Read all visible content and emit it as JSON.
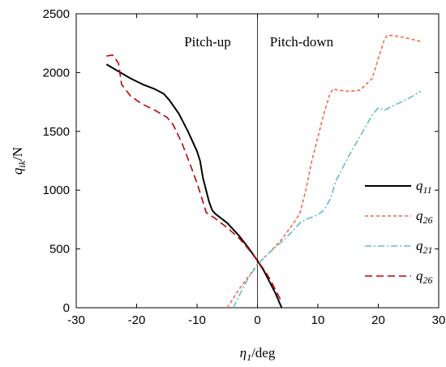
{
  "chart_data": {
    "type": "line",
    "xlabel": {
      "main": "η",
      "sub": "1",
      "unit": "/deg"
    },
    "ylabel": {
      "main": "q",
      "sub": "ik",
      "unit": "/N"
    },
    "xlim": [
      -30,
      30
    ],
    "ylim": [
      0,
      2500
    ],
    "xticks": [
      -30,
      -20,
      -10,
      0,
      10,
      20,
      30
    ],
    "yticks": [
      0,
      500,
      1000,
      1500,
      2000,
      2500
    ],
    "grid": false,
    "vertical_reference_line_x": 0,
    "regions": {
      "left": "Pitch-up",
      "right": "Pitch-down"
    },
    "legend_position": "right",
    "series": [
      {
        "name": "q11",
        "name_main": "q",
        "name_sub": "11",
        "color": "#000000",
        "dash": "none",
        "width": 2,
        "points": [
          [
            -25,
            2070
          ],
          [
            -23,
            2010
          ],
          [
            -21,
            1950
          ],
          [
            -19,
            1900
          ],
          [
            -17,
            1860
          ],
          [
            -15.5,
            1820
          ],
          [
            -14.5,
            1760
          ],
          [
            -13,
            1650
          ],
          [
            -11.5,
            1500
          ],
          [
            -10,
            1330
          ],
          [
            -9.5,
            1250
          ],
          [
            -9,
            1100
          ],
          [
            -8,
            900
          ],
          [
            -7.5,
            830
          ],
          [
            -7,
            800
          ],
          [
            -5,
            720
          ],
          [
            -3,
            610
          ],
          [
            -1.5,
            510
          ],
          [
            0,
            400
          ],
          [
            1,
            320
          ],
          [
            2,
            220
          ],
          [
            3,
            120
          ],
          [
            4,
            0
          ]
        ]
      },
      {
        "name": "q26",
        "name_main": "q",
        "name_sub": "26",
        "color": "#ff6347",
        "dash": "4,3",
        "width": 1.6,
        "points": [
          [
            -5,
            0
          ],
          [
            -3,
            160
          ],
          [
            -1,
            300
          ],
          [
            0,
            370
          ],
          [
            2,
            470
          ],
          [
            4,
            580
          ],
          [
            6,
            720
          ],
          [
            7,
            800
          ],
          [
            8,
            1000
          ],
          [
            9,
            1250
          ],
          [
            10,
            1450
          ],
          [
            11,
            1650
          ],
          [
            12,
            1820
          ],
          [
            12.5,
            1860
          ],
          [
            13.5,
            1850
          ],
          [
            15,
            1840
          ],
          [
            17,
            1850
          ],
          [
            19,
            1950
          ],
          [
            20,
            2120
          ],
          [
            21,
            2280
          ],
          [
            21.5,
            2320
          ],
          [
            23,
            2310
          ],
          [
            25,
            2290
          ],
          [
            27,
            2265
          ]
        ]
      },
      {
        "name": "q21",
        "name_main": "q",
        "name_sub": "21",
        "color": "#5fc0c8",
        "dash": "8,3,2,3",
        "width": 1.6,
        "points": [
          [
            -4,
            0
          ],
          [
            -2,
            210
          ],
          [
            0,
            370
          ],
          [
            2,
            470
          ],
          [
            4,
            560
          ],
          [
            6,
            660
          ],
          [
            7,
            720
          ],
          [
            8,
            750
          ],
          [
            9,
            770
          ],
          [
            10,
            790
          ],
          [
            11,
            830
          ],
          [
            12,
            920
          ],
          [
            13,
            1080
          ],
          [
            15,
            1280
          ],
          [
            17,
            1460
          ],
          [
            19,
            1640
          ],
          [
            20,
            1700
          ],
          [
            21,
            1680
          ],
          [
            23,
            1730
          ],
          [
            25,
            1780
          ],
          [
            27,
            1840
          ]
        ]
      },
      {
        "name": "q26",
        "name_main": "q",
        "name_sub": "26",
        "color": "#c00000",
        "dash": "9,5",
        "width": 1.6,
        "points": [
          [
            -25,
            2140
          ],
          [
            -24,
            2150
          ],
          [
            -23,
            2080
          ],
          [
            -22.5,
            1900
          ],
          [
            -21,
            1800
          ],
          [
            -19,
            1730
          ],
          [
            -17,
            1680
          ],
          [
            -15,
            1620
          ],
          [
            -14,
            1560
          ],
          [
            -12.5,
            1400
          ],
          [
            -11,
            1200
          ],
          [
            -10,
            1060
          ],
          [
            -9,
            900
          ],
          [
            -8.5,
            810
          ],
          [
            -7,
            760
          ],
          [
            -5,
            680
          ],
          [
            -3,
            590
          ],
          [
            -1.5,
            500
          ],
          [
            0,
            400
          ],
          [
            1,
            330
          ],
          [
            2,
            250
          ],
          [
            3,
            150
          ],
          [
            4,
            50
          ]
        ]
      }
    ]
  }
}
